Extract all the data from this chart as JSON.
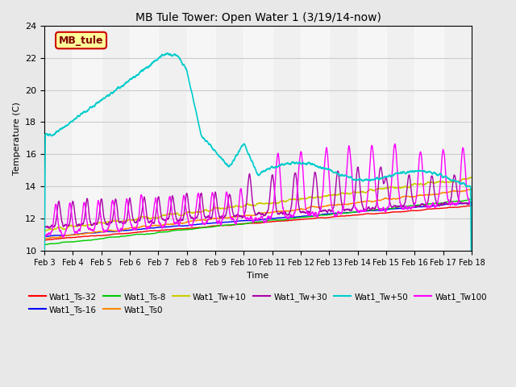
{
  "title": "MB Tule Tower: Open Water 1 (3/19/14-now)",
  "xlabel": "Time",
  "ylabel": "Temperature (C)",
  "ylim": [
    10,
    24
  ],
  "yticks": [
    10,
    12,
    14,
    16,
    18,
    20,
    22,
    24
  ],
  "background_color": "#e8e8e8",
  "plot_bg_color": "#f0f0f0",
  "legend_label": "MB_tule",
  "legend_box_color": "#ffff99",
  "legend_border_color": "#cc0000",
  "series": {
    "Wat1_Ts-32": {
      "color": "#ff0000",
      "lw": 1.0
    },
    "Wat1_Ts-16": {
      "color": "#0000ff",
      "lw": 1.0
    },
    "Wat1_Ts-8": {
      "color": "#00cc00",
      "lw": 1.0
    },
    "Wat1_Ts0": {
      "color": "#ff8800",
      "lw": 1.0
    },
    "Wat1_Tw+10": {
      "color": "#cccc00",
      "lw": 1.0
    },
    "Wat1_Tw+30": {
      "color": "#aa00aa",
      "lw": 1.0
    },
    "Wat1_Tw+50": {
      "color": "#00cccc",
      "lw": 1.2
    },
    "Wat1_Tw100": {
      "color": "#ff00ff",
      "lw": 1.0
    }
  },
  "figsize": [
    6.4,
    4.8
  ],
  "dpi": 100
}
